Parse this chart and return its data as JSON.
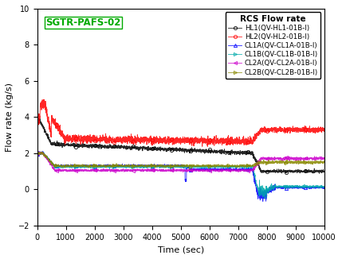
{
  "title": "RCS Flow rate",
  "label_text": "SGTR-PAFS-02",
  "xlabel": "Time (sec)",
  "ylabel": "Flow rate (kg/s)",
  "xlim": [
    0,
    10000
  ],
  "ylim": [
    -2,
    10
  ],
  "xticks": [
    0,
    1000,
    2000,
    3000,
    4000,
    5000,
    6000,
    7000,
    8000,
    9000,
    10000
  ],
  "yticks": [
    -2,
    0,
    2,
    4,
    6,
    8,
    10
  ],
  "series": [
    {
      "label": "HL1(QV-HL1-01B-I)",
      "color": "#000000",
      "marker": "o"
    },
    {
      "label": "HL2(QV-HL2-01B-I)",
      "color": "#ff0000",
      "marker": "o"
    },
    {
      "label": "CL1A(QV-CL1A-01B-I)",
      "color": "#0000ff",
      "marker": "^"
    },
    {
      "label": "CL1B(QV-CL1B-01B-I)",
      "color": "#00aaaa",
      "marker": ">"
    },
    {
      "label": "CL2A(QV-CL2A-01B-I)",
      "color": "#cc00cc",
      "marker": "<"
    },
    {
      "label": "CL2B(QV-CL2B-01B-I)",
      "color": "#888800",
      "marker": ">"
    }
  ],
  "background_color": "#ffffff",
  "seed": 42
}
